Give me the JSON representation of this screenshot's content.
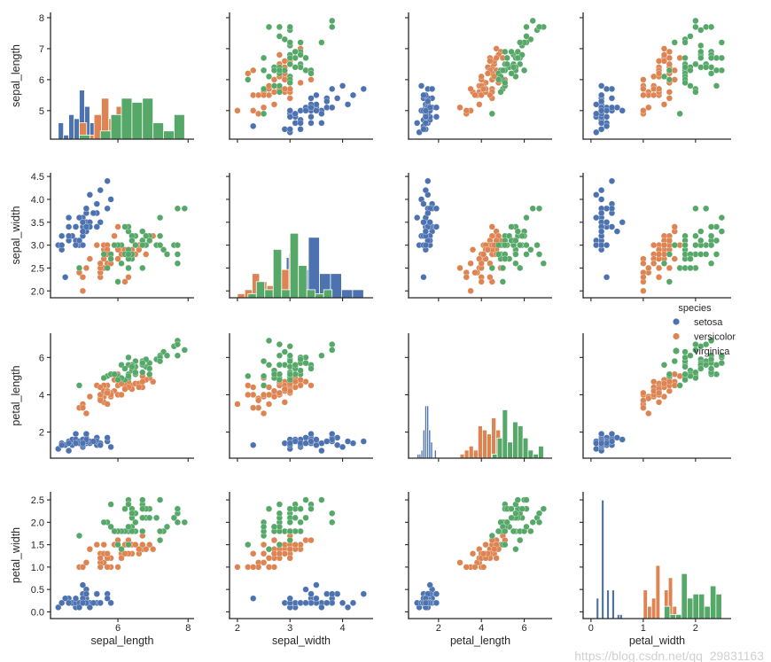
{
  "chart_data": {
    "type": "scatter",
    "subtype": "pairplot",
    "variables": [
      "sepal_length",
      "sepal_width",
      "petal_length",
      "petal_width"
    ],
    "diagonal": "histogram",
    "grid": false,
    "axis_ranges": {
      "sepal_length": [
        4.08,
        8.17
      ],
      "sepal_width": [
        1.85,
        4.58
      ],
      "petal_length": [
        0.6,
        7.3
      ],
      "petal_width": [
        -0.15,
        2.68
      ]
    },
    "y_ticks": {
      "sepal_length": [
        "5",
        "6",
        "7",
        "8"
      ],
      "sepal_width": [
        "2.0",
        "2.5",
        "3.0",
        "3.5",
        "4.0",
        "4.5"
      ],
      "petal_length": [
        "2",
        "4",
        "6"
      ],
      "petal_width": [
        "0.0",
        "0.5",
        "1.0",
        "1.5",
        "2.0",
        "2.5"
      ]
    },
    "x_ticks": {
      "sepal_length": [
        "6",
        "8"
      ],
      "sepal_width": [
        "2",
        "3",
        "4"
      ],
      "petal_length": [
        "2",
        "4",
        "6"
      ],
      "petal_width": [
        "0",
        "1",
        "2"
      ]
    },
    "legend": {
      "title": "species",
      "placement": "right",
      "entries": [
        "setosa",
        "versicolor",
        "virginica"
      ]
    },
    "colors": {
      "setosa": "#4c72b0",
      "versicolor": "#dd8452",
      "virginica": "#55a868"
    },
    "series": [
      {
        "name": "setosa",
        "rows": [
          [
            5.1,
            3.5,
            1.4,
            0.2
          ],
          [
            4.9,
            3.0,
            1.4,
            0.2
          ],
          [
            4.7,
            3.2,
            1.3,
            0.2
          ],
          [
            4.6,
            3.1,
            1.5,
            0.2
          ],
          [
            5.0,
            3.6,
            1.4,
            0.2
          ],
          [
            5.4,
            3.9,
            1.7,
            0.4
          ],
          [
            4.6,
            3.4,
            1.4,
            0.3
          ],
          [
            5.0,
            3.4,
            1.5,
            0.2
          ],
          [
            4.4,
            2.9,
            1.4,
            0.2
          ],
          [
            4.9,
            3.1,
            1.5,
            0.1
          ],
          [
            5.4,
            3.7,
            1.5,
            0.2
          ],
          [
            4.8,
            3.4,
            1.6,
            0.2
          ],
          [
            4.8,
            3.0,
            1.4,
            0.1
          ],
          [
            4.3,
            3.0,
            1.1,
            0.1
          ],
          [
            5.8,
            4.0,
            1.2,
            0.2
          ],
          [
            5.7,
            4.4,
            1.5,
            0.4
          ],
          [
            5.4,
            3.9,
            1.3,
            0.4
          ],
          [
            5.1,
            3.5,
            1.4,
            0.3
          ],
          [
            5.7,
            3.8,
            1.7,
            0.3
          ],
          [
            5.1,
            3.8,
            1.5,
            0.3
          ],
          [
            5.4,
            3.4,
            1.7,
            0.2
          ],
          [
            5.1,
            3.7,
            1.5,
            0.4
          ],
          [
            4.6,
            3.6,
            1.0,
            0.2
          ],
          [
            5.1,
            3.3,
            1.7,
            0.5
          ],
          [
            4.8,
            3.4,
            1.9,
            0.2
          ],
          [
            5.0,
            3.0,
            1.6,
            0.2
          ],
          [
            5.0,
            3.4,
            1.6,
            0.4
          ],
          [
            5.2,
            3.5,
            1.5,
            0.2
          ],
          [
            5.2,
            3.4,
            1.4,
            0.2
          ],
          [
            4.7,
            3.2,
            1.6,
            0.2
          ],
          [
            4.8,
            3.1,
            1.6,
            0.2
          ],
          [
            5.4,
            3.4,
            1.5,
            0.4
          ],
          [
            5.2,
            4.1,
            1.5,
            0.1
          ],
          [
            5.5,
            4.2,
            1.4,
            0.2
          ],
          [
            4.9,
            3.1,
            1.5,
            0.2
          ],
          [
            5.0,
            3.2,
            1.2,
            0.2
          ],
          [
            5.5,
            3.5,
            1.3,
            0.2
          ],
          [
            4.9,
            3.6,
            1.4,
            0.1
          ],
          [
            4.4,
            3.0,
            1.3,
            0.2
          ],
          [
            5.1,
            3.4,
            1.5,
            0.2
          ],
          [
            5.0,
            3.5,
            1.3,
            0.3
          ],
          [
            4.5,
            2.3,
            1.3,
            0.3
          ],
          [
            4.4,
            3.2,
            1.3,
            0.2
          ],
          [
            5.0,
            3.5,
            1.6,
            0.6
          ],
          [
            5.1,
            3.8,
            1.9,
            0.4
          ],
          [
            4.8,
            3.0,
            1.4,
            0.3
          ],
          [
            5.1,
            3.8,
            1.6,
            0.2
          ],
          [
            4.6,
            3.2,
            1.4,
            0.2
          ],
          [
            5.3,
            3.7,
            1.5,
            0.2
          ],
          [
            5.0,
            3.3,
            1.4,
            0.2
          ]
        ]
      },
      {
        "name": "versicolor",
        "rows": [
          [
            7.0,
            3.2,
            4.7,
            1.4
          ],
          [
            6.4,
            3.2,
            4.5,
            1.5
          ],
          [
            6.9,
            3.1,
            4.9,
            1.5
          ],
          [
            5.5,
            2.3,
            4.0,
            1.3
          ],
          [
            6.5,
            2.8,
            4.6,
            1.5
          ],
          [
            5.7,
            2.8,
            4.5,
            1.3
          ],
          [
            6.3,
            3.3,
            4.7,
            1.6
          ],
          [
            4.9,
            2.4,
            3.3,
            1.0
          ],
          [
            6.6,
            2.9,
            4.6,
            1.3
          ],
          [
            5.2,
            2.7,
            3.9,
            1.4
          ],
          [
            5.0,
            2.0,
            3.5,
            1.0
          ],
          [
            5.9,
            3.0,
            4.2,
            1.5
          ],
          [
            6.0,
            2.2,
            4.0,
            1.0
          ],
          [
            6.1,
            2.9,
            4.7,
            1.4
          ],
          [
            5.6,
            2.9,
            3.6,
            1.3
          ],
          [
            6.7,
            3.1,
            4.4,
            1.4
          ],
          [
            5.6,
            3.0,
            4.5,
            1.5
          ],
          [
            5.8,
            2.7,
            4.1,
            1.0
          ],
          [
            6.2,
            2.2,
            4.5,
            1.5
          ],
          [
            5.6,
            2.5,
            3.9,
            1.1
          ],
          [
            5.9,
            3.2,
            4.8,
            1.8
          ],
          [
            6.1,
            2.8,
            4.0,
            1.3
          ],
          [
            6.3,
            2.5,
            4.9,
            1.5
          ],
          [
            6.1,
            2.8,
            4.7,
            1.2
          ],
          [
            6.4,
            2.9,
            4.3,
            1.3
          ],
          [
            6.6,
            3.0,
            4.4,
            1.4
          ],
          [
            6.8,
            2.8,
            4.8,
            1.4
          ],
          [
            6.7,
            3.0,
            5.0,
            1.7
          ],
          [
            6.0,
            2.9,
            4.5,
            1.5
          ],
          [
            5.7,
            2.6,
            3.5,
            1.0
          ],
          [
            5.5,
            2.4,
            3.8,
            1.1
          ],
          [
            5.5,
            2.4,
            3.7,
            1.0
          ],
          [
            5.8,
            2.7,
            3.9,
            1.2
          ],
          [
            6.0,
            2.7,
            5.1,
            1.6
          ],
          [
            5.4,
            3.0,
            4.5,
            1.5
          ],
          [
            6.0,
            3.4,
            4.5,
            1.6
          ],
          [
            6.7,
            3.1,
            4.7,
            1.5
          ],
          [
            6.3,
            2.3,
            4.4,
            1.3
          ],
          [
            5.6,
            3.0,
            4.1,
            1.3
          ],
          [
            5.5,
            2.5,
            4.0,
            1.3
          ],
          [
            5.5,
            2.6,
            4.4,
            1.2
          ],
          [
            6.1,
            3.0,
            4.6,
            1.4
          ],
          [
            5.8,
            2.6,
            4.0,
            1.2
          ],
          [
            5.0,
            2.3,
            3.3,
            1.0
          ],
          [
            5.6,
            2.7,
            4.2,
            1.3
          ],
          [
            5.7,
            3.0,
            4.2,
            1.2
          ],
          [
            5.7,
            2.9,
            4.2,
            1.3
          ],
          [
            6.2,
            2.9,
            4.3,
            1.3
          ],
          [
            5.1,
            2.5,
            3.0,
            1.1
          ],
          [
            5.7,
            2.8,
            4.1,
            1.3
          ]
        ]
      },
      {
        "name": "virginica",
        "rows": [
          [
            6.3,
            3.3,
            6.0,
            2.5
          ],
          [
            5.8,
            2.7,
            5.1,
            1.9
          ],
          [
            7.1,
            3.0,
            5.9,
            2.1
          ],
          [
            6.3,
            2.9,
            5.6,
            1.8
          ],
          [
            6.5,
            3.0,
            5.8,
            2.2
          ],
          [
            7.6,
            3.0,
            6.6,
            2.1
          ],
          [
            4.9,
            2.5,
            4.5,
            1.7
          ],
          [
            7.3,
            2.9,
            6.3,
            1.8
          ],
          [
            6.7,
            2.5,
            5.8,
            1.8
          ],
          [
            7.2,
            3.6,
            6.1,
            2.5
          ],
          [
            6.5,
            3.2,
            5.1,
            2.0
          ],
          [
            6.4,
            2.7,
            5.3,
            1.9
          ],
          [
            6.8,
            3.0,
            5.5,
            2.1
          ],
          [
            5.7,
            2.5,
            5.0,
            2.0
          ],
          [
            5.8,
            2.8,
            5.1,
            2.4
          ],
          [
            6.4,
            3.2,
            5.3,
            2.3
          ],
          [
            6.5,
            3.0,
            5.5,
            1.8
          ],
          [
            7.7,
            3.8,
            6.7,
            2.2
          ],
          [
            7.7,
            2.6,
            6.9,
            2.3
          ],
          [
            6.0,
            2.2,
            5.0,
            1.5
          ],
          [
            6.9,
            3.2,
            5.7,
            2.3
          ],
          [
            5.6,
            2.8,
            4.9,
            2.0
          ],
          [
            7.7,
            2.8,
            6.7,
            2.0
          ],
          [
            6.3,
            2.7,
            4.9,
            1.8
          ],
          [
            6.7,
            3.3,
            5.7,
            2.1
          ],
          [
            7.2,
            3.2,
            6.0,
            1.8
          ],
          [
            6.2,
            2.8,
            4.8,
            1.8
          ],
          [
            6.1,
            3.0,
            4.9,
            1.8
          ],
          [
            6.4,
            2.8,
            5.6,
            2.1
          ],
          [
            7.2,
            3.0,
            5.8,
            1.6
          ],
          [
            7.4,
            2.8,
            6.1,
            1.9
          ],
          [
            7.9,
            3.8,
            6.4,
            2.0
          ],
          [
            6.4,
            2.8,
            5.6,
            2.2
          ],
          [
            6.3,
            2.8,
            5.1,
            1.5
          ],
          [
            6.1,
            2.6,
            5.6,
            1.4
          ],
          [
            7.7,
            3.0,
            6.1,
            2.3
          ],
          [
            6.3,
            3.4,
            5.6,
            2.4
          ],
          [
            6.4,
            3.1,
            5.5,
            1.8
          ],
          [
            6.0,
            3.0,
            4.8,
            1.8
          ],
          [
            6.9,
            3.1,
            5.4,
            2.1
          ],
          [
            6.7,
            3.1,
            5.6,
            2.4
          ],
          [
            6.9,
            3.1,
            5.1,
            2.3
          ],
          [
            5.8,
            2.7,
            5.1,
            1.9
          ],
          [
            6.8,
            3.2,
            5.9,
            2.3
          ],
          [
            6.7,
            3.3,
            5.7,
            2.5
          ],
          [
            6.7,
            3.0,
            5.2,
            2.3
          ],
          [
            6.3,
            2.5,
            5.0,
            1.9
          ],
          [
            6.5,
            3.0,
            5.2,
            2.0
          ],
          [
            6.2,
            3.4,
            5.4,
            2.3
          ],
          [
            5.9,
            3.0,
            5.1,
            1.8
          ]
        ]
      }
    ]
  },
  "watermark": "https://blog.csdn.net/qq_29831163"
}
